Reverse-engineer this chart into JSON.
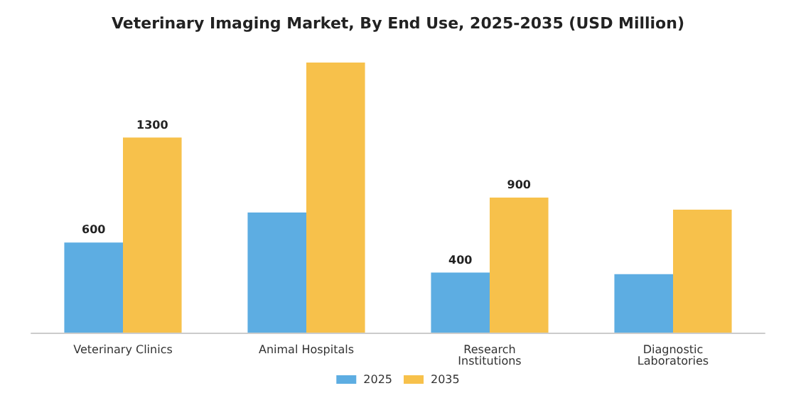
{
  "chart_data": {
    "type": "bar",
    "title": "Veterinary Imaging Market, By End Use, 2025-2035 (USD Million)",
    "categories": [
      "Veterinary Clinics",
      "Animal Hospitals",
      "Research\nInstitutions",
      "Diagnostic\nLaboratories"
    ],
    "series": [
      {
        "name": "2025",
        "color": "#5dade2",
        "values": [
          600,
          800,
          400,
          390
        ],
        "value_labels": [
          "600",
          null,
          "400",
          null
        ]
      },
      {
        "name": "2035",
        "color": "#f7c14b",
        "values": [
          1300,
          1800,
          900,
          820
        ],
        "value_labels": [
          "1300",
          null,
          "900",
          null
        ]
      }
    ],
    "legend": "bottom"
  }
}
